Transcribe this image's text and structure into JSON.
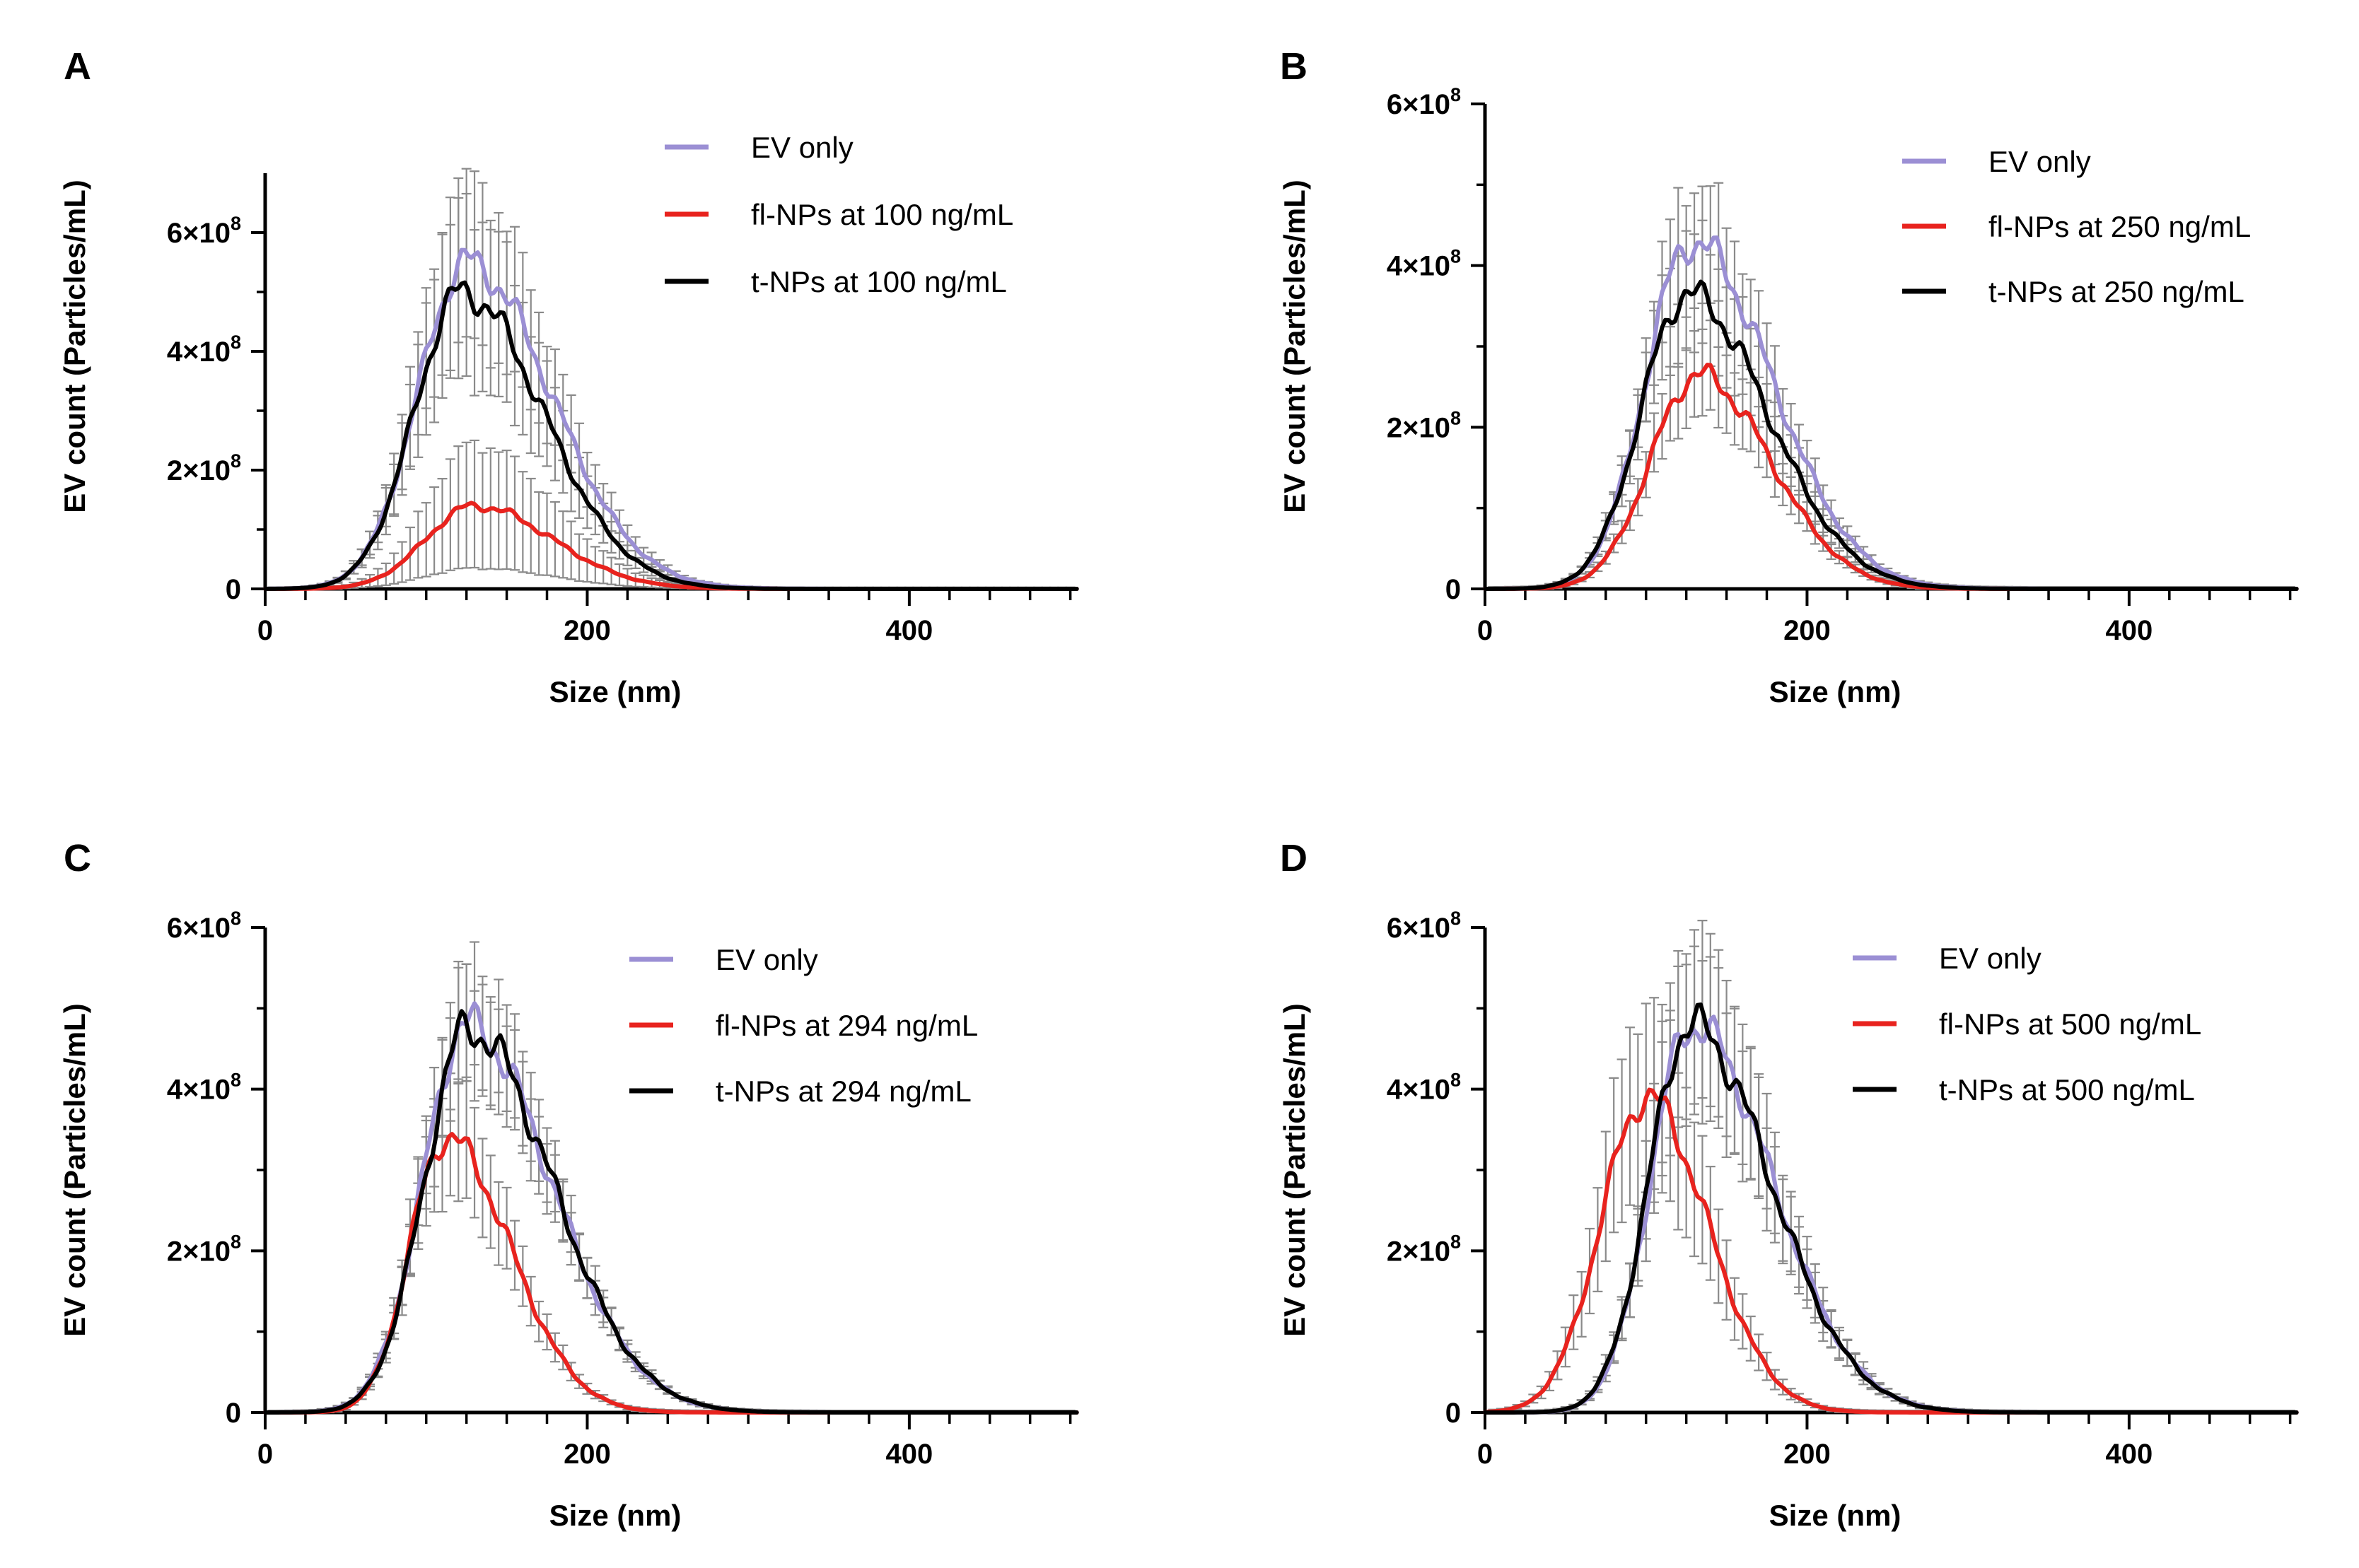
{
  "chart_data": [
    {
      "panel": "A",
      "type": "line",
      "xlabel": "Size (nm)",
      "ylabel": "EV count (Particles/mL)",
      "xlim": [
        0,
        505
      ],
      "ylim": [
        0,
        700000000
      ],
      "xticks": [
        "0",
        "200",
        "400"
      ],
      "yticks": [
        {
          "base": "0",
          "exp": ""
        },
        {
          "base": "2×10",
          "exp": "8"
        },
        {
          "base": "4×10",
          "exp": "8"
        },
        {
          "base": "6×10",
          "exp": "8"
        }
      ],
      "legend": [
        "EV only",
        "fl-NPs at 100 ng/mL",
        "t-NPs at 100 ng/mL"
      ],
      "series": [
        {
          "name": "EV only",
          "color": "#9b8fd4",
          "peak_x": 125,
          "peak_y": 550000000,
          "sd_left": 30,
          "sd_right": 52,
          "err_frac": 0.25
        },
        {
          "name": "fl-NPs at 100 ng/mL",
          "color": "#e8231e",
          "peak_x": 130,
          "peak_y": 140000000,
          "sd_left": 30,
          "sd_right": 48,
          "err_frac": 0.75
        },
        {
          "name": "t-NPs at 100 ng/mL",
          "color": "#000000",
          "peak_x": 122,
          "peak_y": 500000000,
          "sd_left": 29,
          "sd_right": 50,
          "err_frac": 0.3
        }
      ]
    },
    {
      "panel": "B",
      "type": "line",
      "xlabel": "Size (nm)",
      "ylabel": "EV count (Particles/mL)",
      "xlim": [
        0,
        505
      ],
      "ylim": [
        0,
        600000000
      ],
      "xticks": [
        "0",
        "200",
        "400"
      ],
      "yticks": [
        {
          "base": "0",
          "exp": ""
        },
        {
          "base": "2×10",
          "exp": "8"
        },
        {
          "base": "4×10",
          "exp": "8"
        },
        {
          "base": "6×10",
          "exp": "8"
        }
      ],
      "legend": [
        "EV only",
        "fl-NPs at 250 ng/mL",
        "t-NPs at 250 ng/mL"
      ],
      "series": [
        {
          "name": "EV only",
          "color": "#9b8fd4",
          "peak_x": 128,
          "peak_y": 430000000,
          "sd_left": 28,
          "sd_right": 50,
          "err_frac": 0.17
        },
        {
          "name": "fl-NPs at 250 ng/mL",
          "color": "#e8231e",
          "peak_x": 132,
          "peak_y": 265000000,
          "sd_left": 29,
          "sd_right": 45,
          "err_frac": 0.2
        },
        {
          "name": "t-NPs at 250 ng/mL",
          "color": "#000000",
          "peak_x": 125,
          "peak_y": 365000000,
          "sd_left": 28,
          "sd_right": 50,
          "err_frac": 0.2
        }
      ]
    },
    {
      "panel": "C",
      "type": "line",
      "xlabel": "Size (nm)",
      "ylabel": "EV count (Particles/mL)",
      "xlim": [
        0,
        505
      ],
      "ylim": [
        0,
        600000000
      ],
      "xticks": [
        "0",
        "200",
        "400"
      ],
      "yticks": [
        {
          "base": "0",
          "exp": ""
        },
        {
          "base": "2×10",
          "exp": "8"
        },
        {
          "base": "4×10",
          "exp": "8"
        },
        {
          "base": "6×10",
          "exp": "8"
        }
      ],
      "legend": [
        "EV only",
        "fl-NPs at 294 ng/mL",
        "t-NPs at 294 ng/mL"
      ],
      "series": [
        {
          "name": "EV only",
          "color": "#9b8fd4",
          "peak_x": 125,
          "peak_y": 480000000,
          "sd_left": 27,
          "sd_right": 52,
          "err_frac": 0.15
        },
        {
          "name": "fl-NPs at 294 ng/mL",
          "color": "#e8231e",
          "peak_x": 112,
          "peak_y": 340000000,
          "sd_left": 22,
          "sd_right": 40,
          "err_frac": 0.22
        },
        {
          "name": "t-NPs at 294 ng/mL",
          "color": "#000000",
          "peak_x": 126,
          "peak_y": 475000000,
          "sd_left": 27,
          "sd_right": 52,
          "err_frac": 0.15
        }
      ]
    },
    {
      "panel": "D",
      "type": "line",
      "xlabel": "Size (nm)",
      "ylabel": "EV count (Particles/mL)",
      "xlim": [
        0,
        505
      ],
      "ylim": [
        0,
        600000000
      ],
      "xticks": [
        "0",
        "200",
        "400"
      ],
      "yticks": [
        {
          "base": "0",
          "exp": ""
        },
        {
          "base": "2×10",
          "exp": "8"
        },
        {
          "base": "4×10",
          "exp": "8"
        },
        {
          "base": "6×10",
          "exp": "8"
        }
      ],
      "legend": [
        "EV only",
        "fl-NPs at 500 ng/mL",
        "t-NPs at 500 ng/mL"
      ],
      "series": [
        {
          "name": "EV only",
          "color": "#9b8fd4",
          "peak_x": 128,
          "peak_y": 480000000,
          "sd_left": 25,
          "sd_right": 50,
          "err_frac": 0.22
        },
        {
          "name": "fl-NPs at 500 ng/mL",
          "color": "#e8231e",
          "peak_x": 100,
          "peak_y": 390000000,
          "sd_left": 28,
          "sd_right": 38,
          "err_frac": 0.3
        },
        {
          "name": "t-NPs at 500 ng/mL",
          "color": "#000000",
          "peak_x": 127,
          "peak_y": 480000000,
          "sd_left": 25,
          "sd_right": 50,
          "err_frac": 0.22
        }
      ]
    }
  ]
}
